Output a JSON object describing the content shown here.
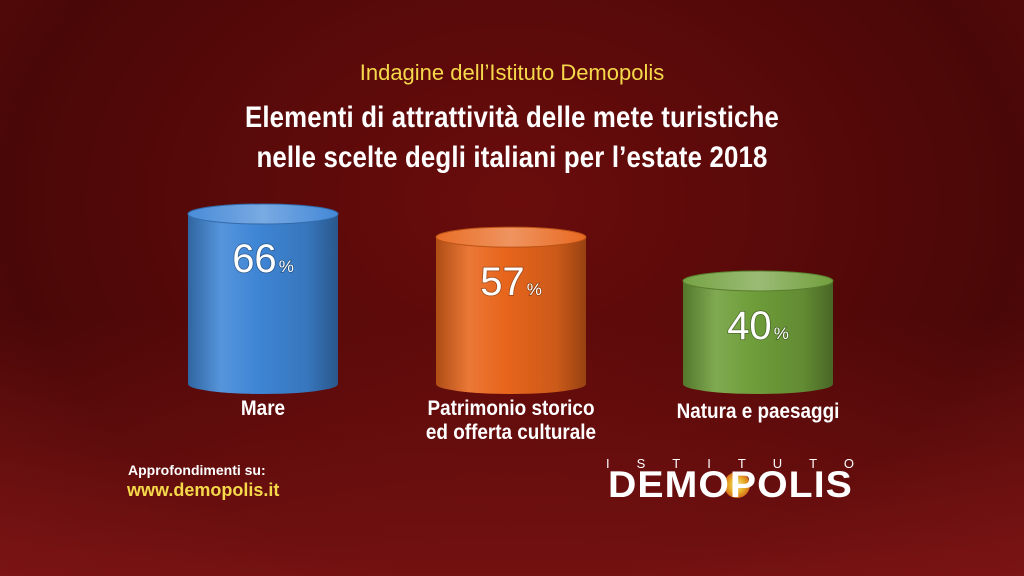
{
  "header": {
    "subtitle": "Indagine dell’Istituto Demopolis",
    "title_line1": "Elementi di attrattività delle mete turistiche",
    "title_line2": "nelle scelte degli italiani per l’estate 2018"
  },
  "chart_data": {
    "type": "bar",
    "categories": [
      "Mare",
      "Patrimonio storico ed offerta culturale",
      "Natura e paesaggi"
    ],
    "category_lines": [
      [
        "Mare"
      ],
      [
        "Patrimonio storico",
        "ed offerta culturale"
      ],
      [
        "Natura e paesaggi"
      ]
    ],
    "values": [
      66,
      57,
      40
    ],
    "value_labels": [
      "66",
      "57",
      "40"
    ],
    "unit": "%",
    "colors": [
      "#3f86d6",
      "#e8661c",
      "#6f9e3a"
    ],
    "title": "Elementi di attrattività delle mete turistiche nelle scelte degli italiani per l’estate 2018",
    "xlabel": "",
    "ylabel": ""
  },
  "footer": {
    "label": "Approfondimenti su:",
    "url": "www.demopolis.it"
  },
  "logo": {
    "top_text": "ISTITUTO",
    "main_text": "DEMOPOLIS"
  },
  "colors": {
    "background": "#560909",
    "accent_yellow": "#f6d94a",
    "text": "#ffffff"
  }
}
